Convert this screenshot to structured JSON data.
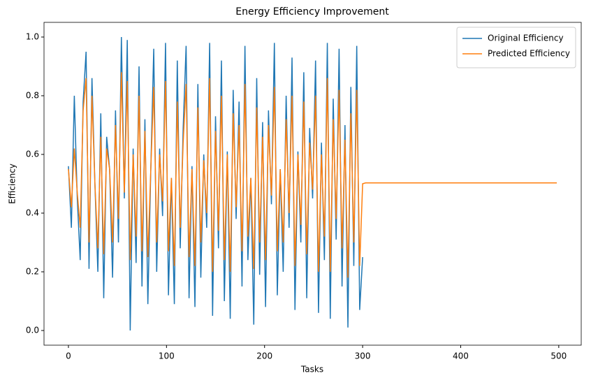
{
  "chart_data": {
    "type": "line",
    "title": "Energy Efficiency Improvement",
    "x_label": "Tasks",
    "y_label": "Efficiency",
    "xlim": [
      -24.9,
      522.9
    ],
    "ylim": [
      -0.05,
      1.05
    ],
    "xticks": [
      0,
      100,
      200,
      300,
      400,
      500
    ],
    "yticks": [
      {
        "value": 0,
        "label": "0.0"
      },
      0.2,
      0.4,
      0.6,
      0.8,
      {
        "value": 1,
        "label": "1.0"
      }
    ],
    "legend": "upper right",
    "series": [
      {
        "name": "Original Efficiency",
        "color": "#1f77b4",
        "x": [
          0,
          3,
          6,
          9,
          12,
          15,
          18,
          21,
          24,
          27,
          30,
          33,
          36,
          39,
          42,
          45,
          48,
          51,
          54,
          57,
          60,
          63,
          66,
          69,
          72,
          75,
          78,
          81,
          84,
          87,
          90,
          93,
          96,
          99,
          102,
          105,
          108,
          111,
          114,
          117,
          120,
          123,
          126,
          129,
          132,
          135,
          138,
          141,
          144,
          147,
          150,
          153,
          156,
          159,
          162,
          165,
          168,
          171,
          174,
          177,
          180,
          183,
          186,
          189,
          192,
          195,
          198,
          201,
          204,
          207,
          210,
          213,
          216,
          219,
          222,
          225,
          228,
          231,
          234,
          237,
          240,
          243,
          246,
          249,
          252,
          255,
          258,
          261,
          264,
          267,
          270,
          273,
          276,
          279,
          282,
          285,
          288,
          291,
          294,
          297,
          300
        ],
        "values": [
          0.56,
          0.35,
          0.8,
          0.45,
          0.24,
          0.78,
          0.95,
          0.21,
          0.86,
          0.5,
          0.2,
          0.74,
          0.11,
          0.66,
          0.55,
          0.18,
          0.75,
          0.3,
          1.0,
          0.45,
          0.99,
          0.0,
          0.62,
          0.23,
          0.9,
          0.15,
          0.72,
          0.09,
          0.55,
          0.96,
          0.2,
          0.62,
          0.39,
          0.98,
          0.12,
          0.52,
          0.09,
          0.92,
          0.28,
          0.69,
          0.97,
          0.11,
          0.56,
          0.08,
          0.84,
          0.18,
          0.6,
          0.35,
          0.98,
          0.05,
          0.73,
          0.28,
          0.92,
          0.1,
          0.61,
          0.04,
          0.82,
          0.38,
          0.78,
          0.15,
          0.97,
          0.24,
          0.52,
          0.02,
          0.86,
          0.19,
          0.71,
          0.08,
          0.75,
          0.43,
          0.98,
          0.12,
          0.55,
          0.2,
          0.8,
          0.35,
          0.93,
          0.07,
          0.61,
          0.3,
          0.88,
          0.11,
          0.69,
          0.45,
          0.92,
          0.06,
          0.64,
          0.24,
          0.98,
          0.04,
          0.79,
          0.31,
          0.96,
          0.15,
          0.7,
          0.01,
          0.83,
          0.22,
          0.97,
          0.07,
          0.25
        ]
      },
      {
        "name": "Predicted Efficiency",
        "color": "#ff7f0e",
        "x": [
          0,
          3,
          6,
          9,
          12,
          15,
          18,
          21,
          24,
          27,
          30,
          33,
          36,
          39,
          42,
          45,
          48,
          51,
          54,
          57,
          60,
          63,
          66,
          69,
          72,
          75,
          78,
          81,
          84,
          87,
          90,
          93,
          96,
          99,
          102,
          105,
          108,
          111,
          114,
          117,
          120,
          123,
          126,
          129,
          132,
          135,
          138,
          141,
          144,
          147,
          150,
          153,
          156,
          159,
          162,
          165,
          168,
          171,
          174,
          177,
          180,
          183,
          186,
          189,
          192,
          195,
          198,
          201,
          204,
          207,
          210,
          213,
          216,
          219,
          222,
          225,
          228,
          231,
          234,
          237,
          240,
          243,
          246,
          249,
          252,
          255,
          258,
          261,
          264,
          267,
          270,
          273,
          276,
          279,
          282,
          285,
          288,
          291,
          294,
          297,
          300,
          303,
          498
        ],
        "values": [
          0.55,
          0.42,
          0.62,
          0.47,
          0.35,
          0.75,
          0.86,
          0.3,
          0.8,
          0.5,
          0.28,
          0.66,
          0.26,
          0.62,
          0.55,
          0.3,
          0.7,
          0.38,
          0.88,
          0.47,
          0.85,
          0.24,
          0.6,
          0.32,
          0.8,
          0.27,
          0.68,
          0.25,
          0.55,
          0.83,
          0.3,
          0.6,
          0.44,
          0.85,
          0.27,
          0.52,
          0.22,
          0.78,
          0.35,
          0.64,
          0.84,
          0.25,
          0.55,
          0.22,
          0.76,
          0.3,
          0.58,
          0.4,
          0.86,
          0.2,
          0.68,
          0.34,
          0.8,
          0.24,
          0.6,
          0.2,
          0.74,
          0.42,
          0.7,
          0.27,
          0.84,
          0.32,
          0.52,
          0.21,
          0.76,
          0.3,
          0.66,
          0.24,
          0.7,
          0.46,
          0.83,
          0.27,
          0.55,
          0.3,
          0.72,
          0.4,
          0.8,
          0.22,
          0.6,
          0.36,
          0.78,
          0.26,
          0.64,
          0.48,
          0.8,
          0.2,
          0.6,
          0.32,
          0.86,
          0.2,
          0.72,
          0.38,
          0.82,
          0.28,
          0.65,
          0.18,
          0.74,
          0.3,
          0.82,
          0.22,
          0.5,
          0.503,
          0.503
        ]
      }
    ]
  }
}
